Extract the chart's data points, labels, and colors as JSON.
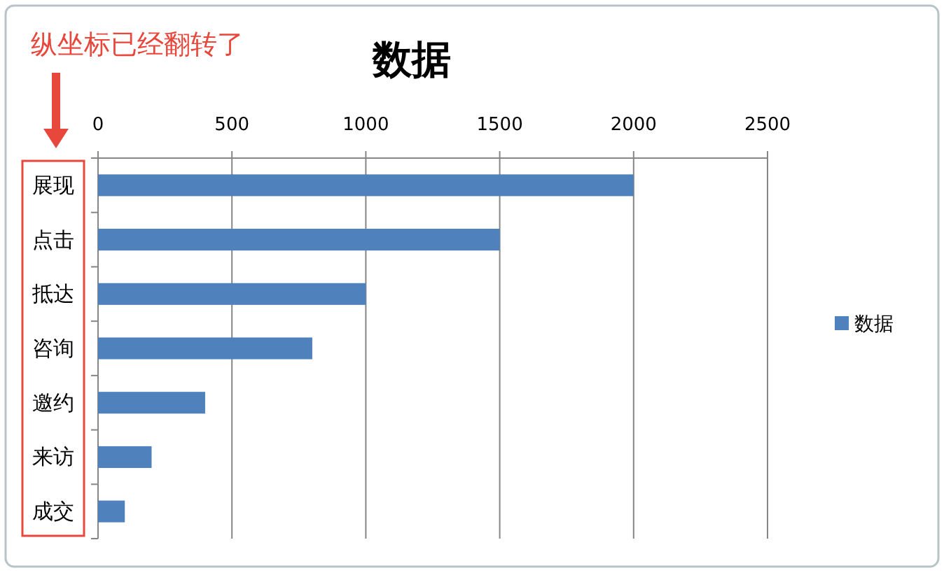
{
  "chart_data": {
    "type": "bar",
    "orientation": "horizontal",
    "title": "数据",
    "categories": [
      "展现",
      "点击",
      "抵达",
      "咨询",
      "邀约",
      "来访",
      "成交"
    ],
    "series": [
      {
        "name": "数据",
        "color": "#4f81bd",
        "values": [
          2000,
          1500,
          1000,
          800,
          400,
          200,
          100
        ]
      }
    ],
    "xlim": [
      0,
      2500
    ],
    "xticks": [
      0,
      500,
      1000,
      1500,
      2000,
      2500
    ],
    "grid": "x",
    "legend": "right",
    "annotations": [
      "纵坐标已经翻转了"
    ]
  }
}
